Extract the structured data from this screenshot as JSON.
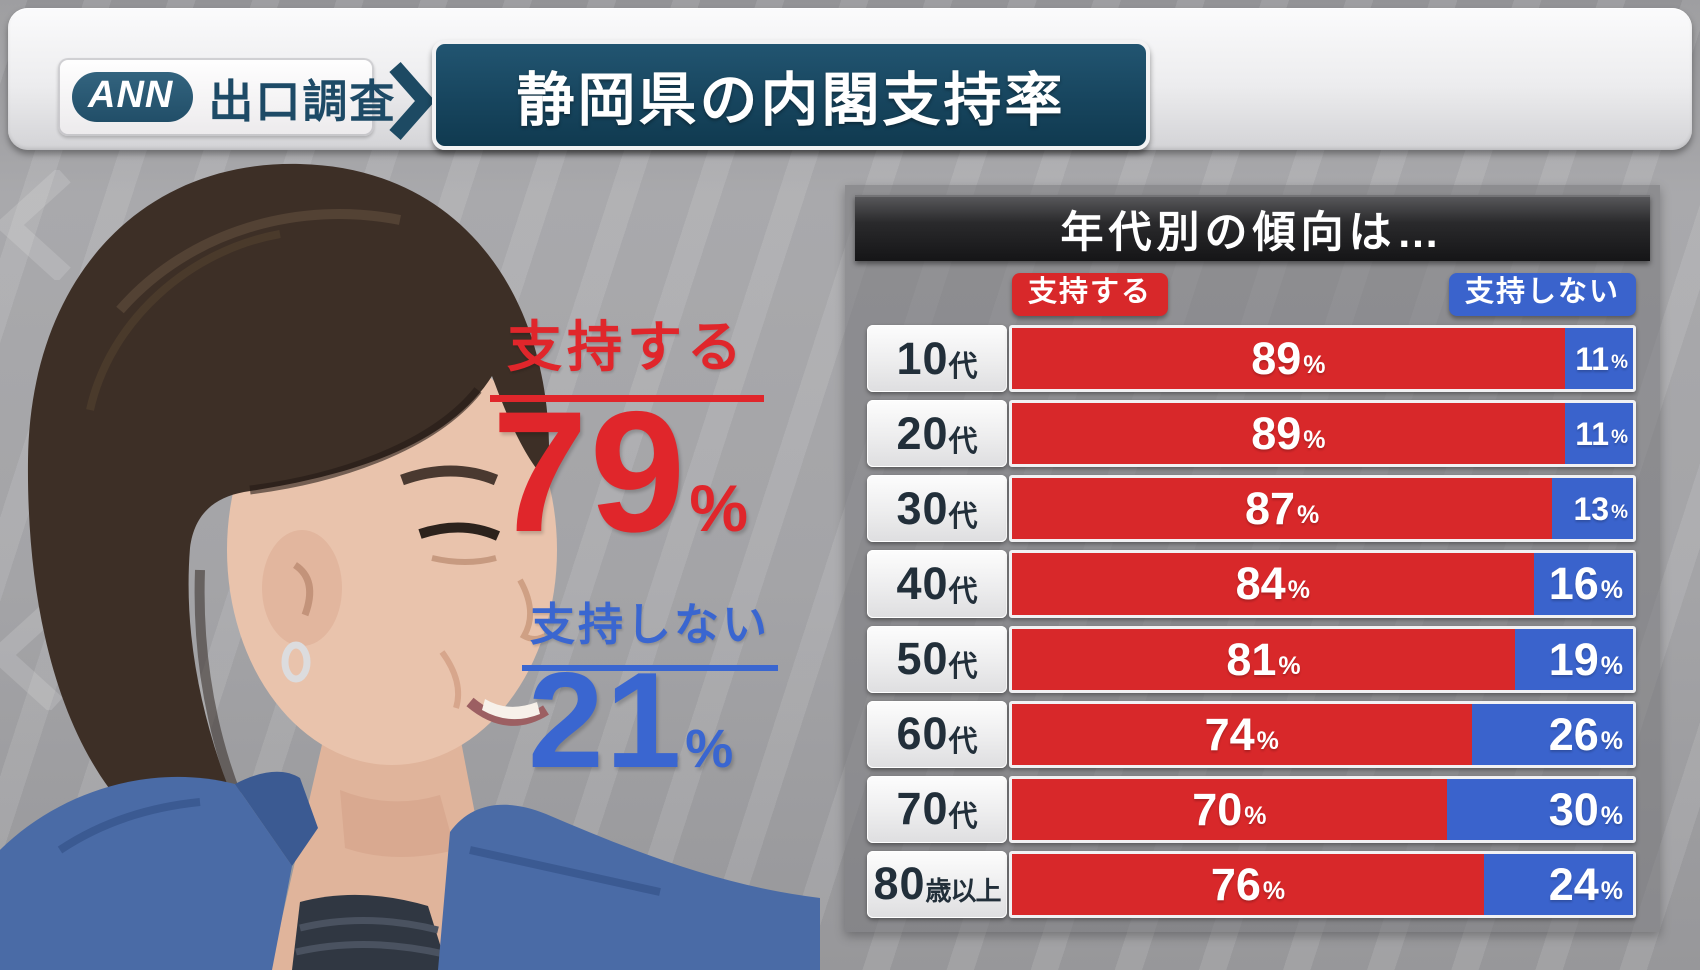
{
  "header": {
    "logo_label": "ANN",
    "program_label": "出口調査",
    "title": "静岡県の内閣支持率"
  },
  "summary": {
    "approve_label": "支持する",
    "approve_value": "79",
    "disapprove_label": "支持しない",
    "disapprove_value": "21",
    "percent_sign": "%"
  },
  "table": {
    "title": "年代別の傾向は…",
    "legend_approve": "支持する",
    "legend_disapprove": "支持しない",
    "percent_sign": "%",
    "rows": [
      {
        "label_num": "10",
        "label_suffix": "代",
        "approve": 89,
        "disapprove": 11
      },
      {
        "label_num": "20",
        "label_suffix": "代",
        "approve": 89,
        "disapprove": 11
      },
      {
        "label_num": "30",
        "label_suffix": "代",
        "approve": 87,
        "disapprove": 13
      },
      {
        "label_num": "40",
        "label_suffix": "代",
        "approve": 84,
        "disapprove": 16
      },
      {
        "label_num": "50",
        "label_suffix": "代",
        "approve": 81,
        "disapprove": 19
      },
      {
        "label_num": "60",
        "label_suffix": "代",
        "approve": 74,
        "disapprove": 26
      },
      {
        "label_num": "70",
        "label_suffix": "代",
        "approve": 70,
        "disapprove": 30
      },
      {
        "label_num": "80",
        "label_suffix": "歳以上",
        "approve": 76,
        "disapprove": 24
      }
    ]
  },
  "colors": {
    "approve_red": "#e0262b",
    "approve_red_bar": "#d8282a",
    "disapprove_blue": "#3a66d0",
    "disapprove_blue_bar": "#3a63cc",
    "title_teal": "#1d4a66",
    "panel_header_black": "#1a1a1c"
  },
  "chart_data": {
    "type": "bar",
    "orientation": "horizontal",
    "stacked": true,
    "title": "年代別の傾向は…",
    "categories": [
      "10代",
      "20代",
      "30代",
      "40代",
      "50代",
      "60代",
      "70代",
      "80歳以上"
    ],
    "series": [
      {
        "name": "支持する",
        "color": "#d8282a",
        "values": [
          89,
          89,
          87,
          84,
          81,
          74,
          70,
          76
        ]
      },
      {
        "name": "支持しない",
        "color": "#3a63cc",
        "values": [
          11,
          11,
          13,
          16,
          19,
          26,
          30,
          24
        ]
      }
    ],
    "unit": "%",
    "xlim": [
      0,
      100
    ],
    "legend_position": "top",
    "overall": {
      "支持する": 79,
      "支持しない": 21
    }
  }
}
